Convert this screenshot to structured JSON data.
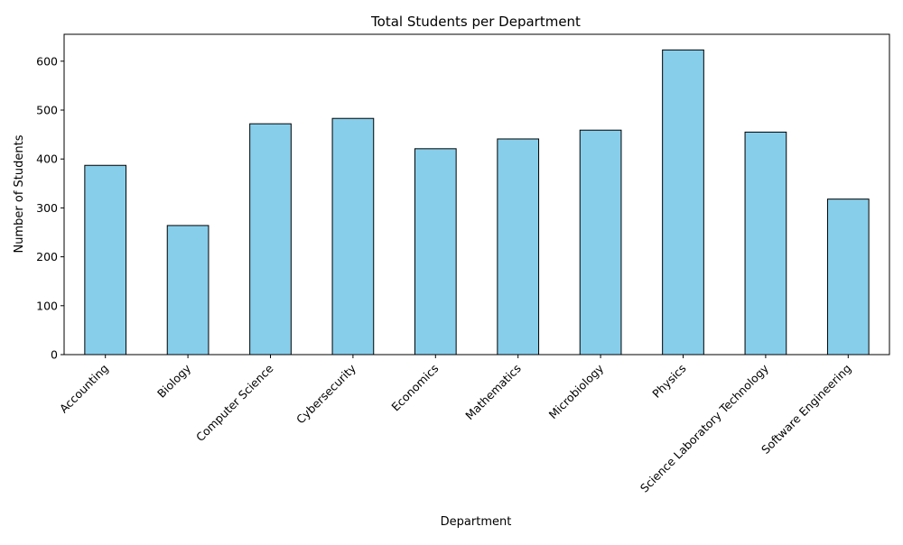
{
  "chart_data": {
    "type": "bar",
    "title": "Total Students per Department",
    "xlabel": "Department",
    "ylabel": "Number of Students",
    "categories": [
      "Accounting",
      "Biology",
      "Computer Science",
      "Cybersecurity",
      "Economics",
      "Mathematics",
      "Microbiology",
      "Physics",
      "Science Laboratory Technology",
      "Software Engineering"
    ],
    "values": [
      387,
      264,
      472,
      483,
      421,
      441,
      459,
      623,
      455,
      318
    ],
    "ylim": [
      0,
      655
    ],
    "yticks": [
      0,
      100,
      200,
      300,
      400,
      500,
      600
    ],
    "grid": false,
    "legend": "none",
    "colors": {
      "bar_fill": "#87CEEB",
      "bar_edge": "#000000",
      "axis": "#000000"
    }
  }
}
